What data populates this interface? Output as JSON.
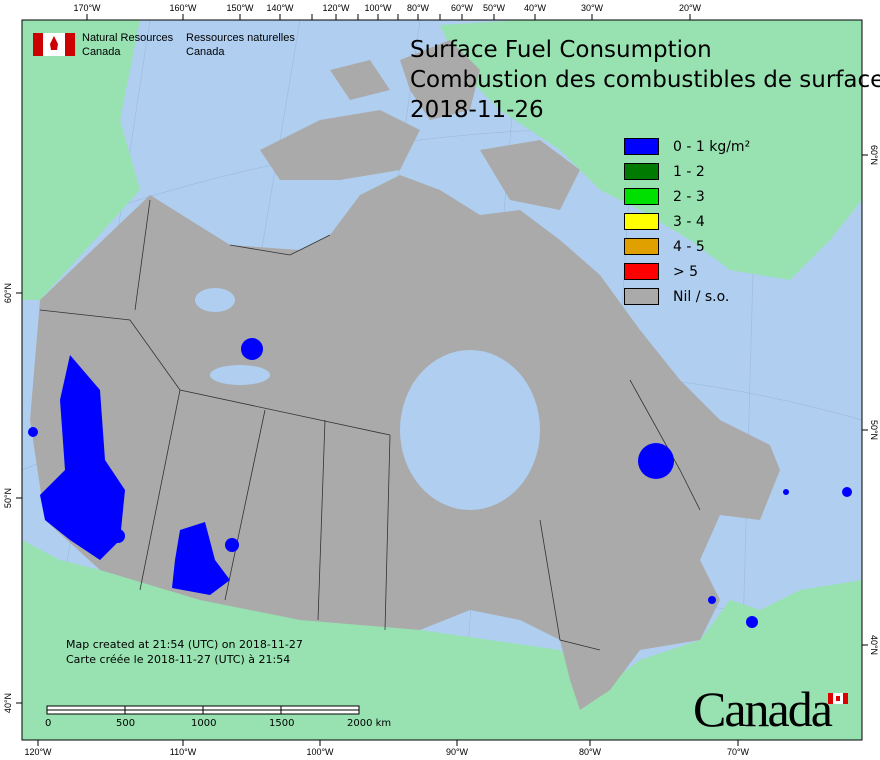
{
  "title": {
    "en": "Surface Fuel Consumption",
    "fr": "Combustion des combustibles de surface",
    "date": "2018-11-26"
  },
  "agency": {
    "en_line1": "Natural Resources",
    "en_line2": "Canada",
    "fr_line1": "Ressources naturelles",
    "fr_line2": "Canada"
  },
  "wordmark": "Canada",
  "legend": [
    {
      "label": "0 - 1 kg/m²",
      "color": "#0000ff"
    },
    {
      "label": "1 - 2",
      "color": "#007a00"
    },
    {
      "label": "2 - 3",
      "color": "#00e000"
    },
    {
      "label": "3 - 4",
      "color": "#ffff00"
    },
    {
      "label": "4 - 5",
      "color": "#e0a000"
    },
    {
      "label": "> 5",
      "color": "#ff0000"
    },
    {
      "label": "Nil / s.o.",
      "color": "#aaaaaa"
    }
  ],
  "created": {
    "en": "Map created at 21:54 (UTC) on 2018-11-27",
    "fr": "Carte créée le 2018-11-27 (UTC) à 21:54"
  },
  "scalebar": {
    "labels": [
      "0",
      "500",
      "1000",
      "1500",
      "2000 km"
    ]
  },
  "graticule": {
    "top": [
      "170°W",
      "160°W",
      "150°W",
      "140°W",
      "120°W",
      "100°W",
      "80°W",
      "60°W",
      "50°W",
      "40°W",
      "30°W",
      "20°W"
    ],
    "bottom": [
      "120°W",
      "110°W",
      "100°W",
      "90°W",
      "80°W",
      "70°W"
    ],
    "left": [
      "60°N",
      "50°N",
      "40°N"
    ],
    "right": [
      "60°N",
      "50°N",
      "40°N"
    ]
  },
  "colors": {
    "ocean": "#b0cff0",
    "foreign_land": "#98e2b2",
    "canada_land": "#aaaaaa",
    "fire": "#0000ff"
  }
}
